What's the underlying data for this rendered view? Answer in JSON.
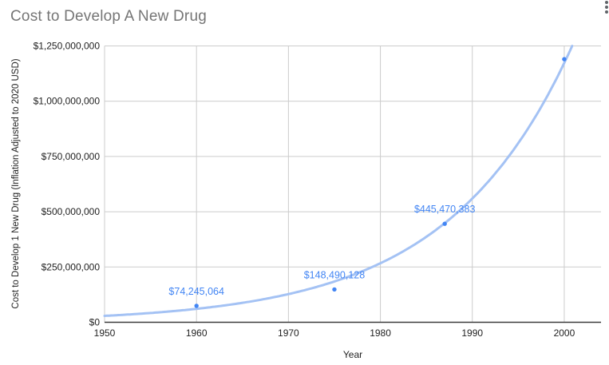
{
  "title": "Cost to Develop A New Drug",
  "menu": {
    "icon": "vertical-ellipsis-menu"
  },
  "colors": {
    "series": "#4285f4",
    "trendline": "#a4c2f4",
    "gridline": "#cccccc",
    "axis": "#3c3c3c",
    "tick_text": "#222222",
    "title_text": "#757575",
    "menu_icon": "#5f6368",
    "background": "#ffffff"
  },
  "chart_data": {
    "type": "scatter",
    "title": "Cost to Develop A New Drug",
    "xlabel": "Year",
    "ylabel": "Cost to Develop 1 New Drug (Inflation Adjusted to 2020 USD)",
    "xlim": [
      1950,
      2004
    ],
    "ylim": [
      0,
      1250000000
    ],
    "grid": true,
    "legend": "none",
    "x_ticks": [
      1950,
      1960,
      1970,
      1980,
      1990,
      2000
    ],
    "y_ticks": [
      {
        "value": 0,
        "label": "$0"
      },
      {
        "value": 250000000,
        "label": "$250,000,000"
      },
      {
        "value": 500000000,
        "label": "$500,000,000"
      },
      {
        "value": 750000000,
        "label": "$750,000,000"
      },
      {
        "value": 1000000000,
        "label": "$1,000,000,000"
      },
      {
        "value": 1250000000,
        "label": "$1,250,000,000"
      }
    ],
    "points": [
      {
        "year": 1960,
        "value": 74245064,
        "label": "$74,245,064",
        "value_estimated": false
      },
      {
        "year": 1975,
        "value": 148490128,
        "label": "$148,490,128",
        "value_estimated": false
      },
      {
        "year": 1987,
        "value": 445470383,
        "label": "$445,470,383",
        "value_estimated": false
      },
      {
        "year": 2000,
        "value": 1190000000,
        "label": "",
        "value_estimated": true
      }
    ],
    "trendline": {
      "type": "exponential",
      "value_at_1950": 29000000,
      "growth_per_year": 0.074,
      "clip_max": 1250000000
    }
  }
}
